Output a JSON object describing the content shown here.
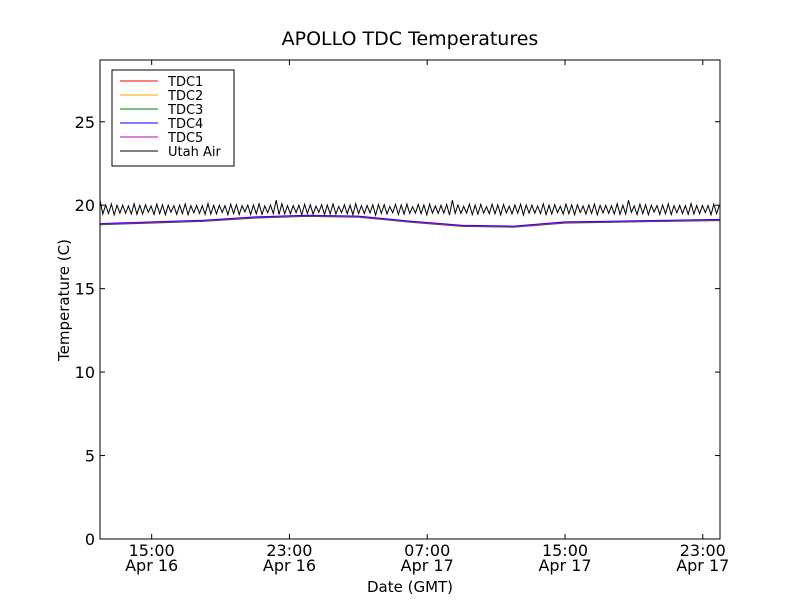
{
  "chart_data": {
    "type": "line",
    "title": "APOLLO TDC Temperatures",
    "xlabel": "Date (GMT)",
    "ylabel": "Temperature (C)",
    "xlim": [
      12,
      48
    ],
    "ylim": [
      0,
      28.7
    ],
    "grid": false,
    "legend_position": "top-left",
    "yticks": [
      {
        "value": 0,
        "label": "0"
      },
      {
        "value": 5,
        "label": "5"
      },
      {
        "value": 10,
        "label": "10"
      },
      {
        "value": 15,
        "label": "15"
      },
      {
        "value": 20,
        "label": "20"
      },
      {
        "value": 25,
        "label": "25"
      }
    ],
    "xticks": [
      {
        "value": 15,
        "time": "15:00",
        "date": "Apr 16"
      },
      {
        "value": 23,
        "time": "23:00",
        "date": "Apr 16"
      },
      {
        "value": 31,
        "time": "07:00",
        "date": "Apr 17"
      },
      {
        "value": 39,
        "time": "15:00",
        "date": "Apr 17"
      },
      {
        "value": 47,
        "time": "23:00",
        "date": "Apr 17"
      }
    ],
    "x": [
      12,
      15,
      18,
      21,
      24,
      27,
      30,
      33,
      36,
      39,
      42,
      45,
      48
    ],
    "series": [
      {
        "name": "TDC1",
        "color": "#ff0000",
        "values": [
          18.85,
          18.95,
          19.05,
          19.25,
          19.35,
          19.3,
          19.0,
          18.75,
          18.7,
          18.95,
          19.0,
          19.05,
          19.1
        ]
      },
      {
        "name": "TDC2",
        "color": "#ffa500",
        "values": [
          18.87,
          18.97,
          19.07,
          19.27,
          19.37,
          19.32,
          19.02,
          18.77,
          18.72,
          18.97,
          19.02,
          19.07,
          19.12
        ]
      },
      {
        "name": "TDC3",
        "color": "#008000",
        "values": [
          18.83,
          18.93,
          19.03,
          19.23,
          19.33,
          19.28,
          18.98,
          18.73,
          18.68,
          18.93,
          18.98,
          19.03,
          19.08
        ]
      },
      {
        "name": "TDC4",
        "color": "#0000ff",
        "values": [
          18.9,
          19.0,
          19.1,
          19.3,
          19.4,
          19.35,
          19.05,
          18.8,
          18.75,
          19.0,
          19.05,
          19.1,
          19.15
        ]
      },
      {
        "name": "TDC5",
        "color": "#bf00bf",
        "values": [
          18.86,
          18.96,
          19.06,
          19.26,
          19.36,
          19.31,
          19.01,
          18.76,
          18.71,
          18.96,
          19.01,
          19.06,
          19.11
        ]
      },
      {
        "name": "Utah Air",
        "color": "#000000",
        "oscillating": true,
        "period_hours": 0.33,
        "center": 19.75,
        "amplitude": 0.3,
        "spike_max": 20.3
      }
    ]
  }
}
